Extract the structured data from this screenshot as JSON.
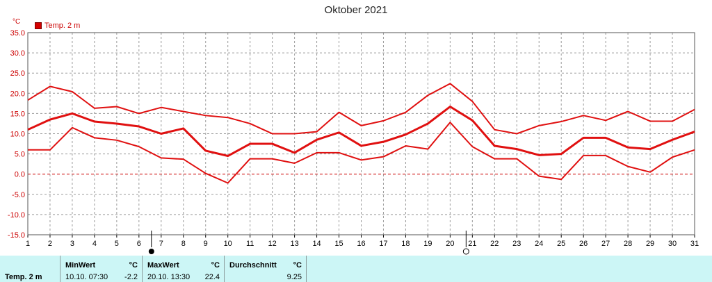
{
  "title": "Oktober 2021",
  "legend": {
    "label": "Temp. 2 m",
    "color": "#d40000"
  },
  "unit": "°C",
  "chart_data": {
    "type": "line",
    "title": "Oktober 2021",
    "xlabel": "",
    "ylabel": "°C",
    "x": [
      1,
      2,
      3,
      4,
      5,
      6,
      7,
      8,
      9,
      10,
      11,
      12,
      13,
      14,
      15,
      16,
      17,
      18,
      19,
      20,
      21,
      22,
      23,
      24,
      25,
      26,
      27,
      28,
      29,
      30,
      31
    ],
    "xlim": [
      1,
      31
    ],
    "ylim": [
      -15,
      35
    ],
    "yticks": [
      -15,
      -10,
      -5,
      0,
      5,
      10,
      15,
      20,
      25,
      30,
      35
    ],
    "ytick_labels": [
      "-15.0",
      "-10.0",
      "-5.0",
      "0.0",
      "5.0",
      "10.0",
      "15.0",
      "20.0",
      "25.0",
      "30.0",
      "35.0"
    ],
    "grid": true,
    "series": [
      {
        "name": "Temp. 2 m",
        "values": [
          11.0,
          13.5,
          15.0,
          13.0,
          12.5,
          11.8,
          10.0,
          11.3,
          5.8,
          4.5,
          7.5,
          7.5,
          5.3,
          8.5,
          10.3,
          7.0,
          8.0,
          9.8,
          12.5,
          16.7,
          13.3,
          7.0,
          6.2,
          4.7,
          5.0,
          9.0,
          9.0,
          6.6,
          6.2,
          8.5,
          10.5
        ]
      },
      {
        "values": [
          18.3,
          21.7,
          20.4,
          16.3,
          16.7,
          15.0,
          16.5,
          15.5,
          14.5,
          14.0,
          12.5,
          10.0,
          10.0,
          10.5,
          15.3,
          12.0,
          13.2,
          15.3,
          19.5,
          22.4,
          18.0,
          11.0,
          10.0,
          12.0,
          13.0,
          14.5,
          13.3,
          15.5,
          13.1,
          13.1,
          16.0
        ]
      },
      {
        "values": [
          6.0,
          6.0,
          11.5,
          9.0,
          8.4,
          6.8,
          4.0,
          3.7,
          0.2,
          -2.2,
          3.8,
          3.8,
          2.7,
          5.3,
          5.3,
          3.5,
          4.3,
          7.0,
          6.2,
          12.8,
          6.8,
          3.8,
          3.8,
          -0.5,
          -1.3,
          4.6,
          4.6,
          1.9,
          0.5,
          4.2,
          6.0
        ]
      }
    ],
    "moon_new_day": 7,
    "moon_full_day": 21
  },
  "stats": {
    "param": "Temp. 2 m",
    "min_header": "MinWert",
    "min_unit": "°C",
    "min_time": "10.10.  07:30",
    "min_value": "-2.2",
    "max_header": "MaxWert",
    "max_unit": "°C",
    "max_time": "20.10.  13:30",
    "max_value": "22.4",
    "avg_header": "Durchschnitt",
    "avg_unit": "°C",
    "avg_value": "9.25"
  }
}
